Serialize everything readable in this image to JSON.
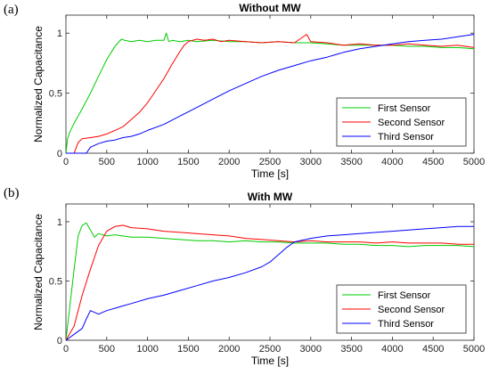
{
  "figure": {
    "panels": [
      {
        "label": "(a)"
      },
      {
        "label": "(b)"
      }
    ]
  },
  "chart_data": [
    {
      "type": "line",
      "title": "Without MW",
      "xlabel": "Time [s]",
      "ylabel": "Normalized Capacitance",
      "xlim": [
        0,
        5000
      ],
      "ylim": [
        0,
        1.15
      ],
      "xticks": [
        "0",
        "500",
        "1000",
        "1500",
        "2000",
        "2500",
        "3000",
        "3500",
        "4000",
        "4500",
        "5000"
      ],
      "yticks": [
        "0",
        "0.5",
        "1"
      ],
      "grid": false,
      "legend_position": "bottom-right",
      "series": [
        {
          "name": "First Sensor",
          "color": "#00cc00",
          "x": [
            0,
            20,
            50,
            100,
            200,
            300,
            400,
            500,
            600,
            680,
            720,
            800,
            900,
            1000,
            1100,
            1200,
            1230,
            1260,
            1300,
            1400,
            1500,
            1600,
            1800,
            2000,
            2200,
            2400,
            2600,
            2800,
            3000,
            3200,
            3400,
            3600,
            3800,
            4000,
            4200,
            4400,
            4600,
            4800,
            5000
          ],
          "y": [
            0.0,
            0.12,
            0.18,
            0.25,
            0.37,
            0.5,
            0.64,
            0.78,
            0.89,
            0.95,
            0.94,
            0.93,
            0.94,
            0.93,
            0.94,
            0.94,
            1.0,
            0.93,
            0.94,
            0.93,
            0.94,
            0.93,
            0.94,
            0.93,
            0.93,
            0.92,
            0.93,
            0.92,
            0.92,
            0.91,
            0.9,
            0.9,
            0.9,
            0.9,
            0.89,
            0.89,
            0.88,
            0.88,
            0.87
          ]
        },
        {
          "name": "Second Sensor",
          "color": "#ff0000",
          "x": [
            0,
            100,
            150,
            200,
            300,
            400,
            500,
            600,
            700,
            800,
            900,
            1000,
            1100,
            1200,
            1300,
            1400,
            1450,
            1500,
            1600,
            1700,
            1800,
            1900,
            2000,
            2200,
            2400,
            2600,
            2800,
            2950,
            3000,
            3200,
            3400,
            3600,
            3800,
            4000,
            4200,
            4400,
            4600,
            4800,
            5000
          ],
          "y": [
            0.0,
            0.0,
            0.09,
            0.12,
            0.13,
            0.14,
            0.16,
            0.19,
            0.22,
            0.28,
            0.34,
            0.42,
            0.52,
            0.62,
            0.74,
            0.85,
            0.9,
            0.93,
            0.95,
            0.94,
            0.95,
            0.93,
            0.94,
            0.93,
            0.92,
            0.93,
            0.92,
            0.99,
            0.93,
            0.92,
            0.9,
            0.91,
            0.9,
            0.9,
            0.91,
            0.9,
            0.89,
            0.9,
            0.88
          ]
        },
        {
          "name": "Third Sensor",
          "color": "#0000ff",
          "x": [
            0,
            250,
            300,
            400,
            500,
            600,
            700,
            800,
            900,
            1000,
            1200,
            1400,
            1600,
            1800,
            2000,
            2200,
            2400,
            2600,
            2800,
            3000,
            3200,
            3400,
            3600,
            3800,
            4000,
            4200,
            4400,
            4600,
            4800,
            5000
          ],
          "y": [
            0.0,
            0.0,
            0.05,
            0.08,
            0.1,
            0.11,
            0.13,
            0.14,
            0.16,
            0.19,
            0.24,
            0.31,
            0.38,
            0.45,
            0.52,
            0.58,
            0.64,
            0.69,
            0.73,
            0.77,
            0.8,
            0.84,
            0.87,
            0.89,
            0.91,
            0.93,
            0.94,
            0.95,
            0.97,
            0.99
          ]
        }
      ]
    },
    {
      "type": "line",
      "title": "With MW",
      "xlabel": "Time [s]",
      "ylabel": "Normalized Capacitance",
      "xlim": [
        0,
        5000
      ],
      "ylim": [
        0,
        1.15
      ],
      "xticks": [
        "0",
        "500",
        "1000",
        "1500",
        "2000",
        "2500",
        "3000",
        "3500",
        "4000",
        "4500",
        "5000"
      ],
      "yticks": [
        "0",
        "0.5",
        "1"
      ],
      "grid": false,
      "legend_position": "bottom-right",
      "series": [
        {
          "name": "First Sensor",
          "color": "#00cc00",
          "x": [
            0,
            50,
            100,
            150,
            200,
            250,
            300,
            350,
            400,
            500,
            600,
            800,
            1000,
            1200,
            1400,
            1600,
            1800,
            2000,
            2200,
            2400,
            2600,
            2800,
            3000,
            3200,
            3400,
            3600,
            3800,
            4000,
            4200,
            4400,
            4600,
            4800,
            5000
          ],
          "y": [
            0.0,
            0.3,
            0.6,
            0.88,
            0.97,
            0.99,
            0.93,
            0.87,
            0.9,
            0.88,
            0.89,
            0.87,
            0.87,
            0.86,
            0.85,
            0.84,
            0.84,
            0.83,
            0.84,
            0.83,
            0.83,
            0.82,
            0.82,
            0.82,
            0.81,
            0.81,
            0.8,
            0.8,
            0.79,
            0.8,
            0.8,
            0.8,
            0.79
          ]
        },
        {
          "name": "Second Sensor",
          "color": "#ff0000",
          "x": [
            0,
            100,
            150,
            200,
            300,
            400,
            500,
            600,
            700,
            800,
            1000,
            1200,
            1400,
            1600,
            1800,
            2000,
            2200,
            2400,
            2600,
            2800,
            3000,
            3200,
            3400,
            3600,
            3800,
            4000,
            4200,
            4400,
            4600,
            4800,
            5000
          ],
          "y": [
            0.0,
            0.12,
            0.25,
            0.38,
            0.6,
            0.8,
            0.92,
            0.96,
            0.97,
            0.95,
            0.94,
            0.92,
            0.91,
            0.9,
            0.89,
            0.88,
            0.86,
            0.85,
            0.84,
            0.83,
            0.84,
            0.83,
            0.83,
            0.83,
            0.82,
            0.83,
            0.82,
            0.82,
            0.82,
            0.81,
            0.81
          ]
        },
        {
          "name": "Third Sensor",
          "color": "#0000ff",
          "x": [
            0,
            100,
            200,
            250,
            300,
            400,
            500,
            600,
            700,
            800,
            1000,
            1200,
            1400,
            1600,
            1800,
            2000,
            2200,
            2400,
            2500,
            2600,
            2700,
            2800,
            3000,
            3200,
            3400,
            3600,
            3800,
            4000,
            4200,
            4400,
            4600,
            4800,
            5000
          ],
          "y": [
            0.0,
            0.05,
            0.1,
            0.18,
            0.25,
            0.22,
            0.25,
            0.27,
            0.29,
            0.31,
            0.35,
            0.38,
            0.42,
            0.46,
            0.5,
            0.53,
            0.57,
            0.62,
            0.66,
            0.72,
            0.78,
            0.83,
            0.86,
            0.88,
            0.89,
            0.9,
            0.91,
            0.92,
            0.93,
            0.94,
            0.95,
            0.96,
            0.96
          ]
        }
      ]
    }
  ]
}
